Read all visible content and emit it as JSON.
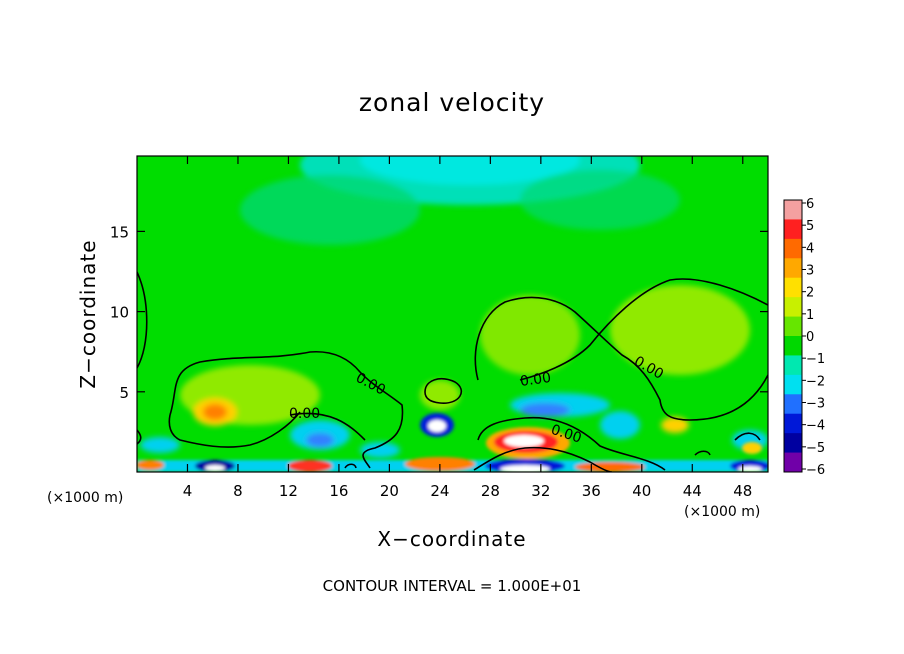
{
  "chart_data": {
    "type": "heatmap",
    "title": "zonal velocity",
    "xlabel": "X−coordinate",
    "ylabel": "Z−coordinate",
    "x_unit_left": "(×1000 m)",
    "x_unit_right": "(×1000 m)",
    "x_ticks": [
      "4",
      "8",
      "12",
      "16",
      "20",
      "24",
      "28",
      "32",
      "36",
      "40",
      "44",
      "48"
    ],
    "y_ticks": [
      "5",
      "10",
      "15"
    ],
    "xlim": [
      0,
      50
    ],
    "ylim": [
      0,
      19.7
    ],
    "contour_label": "0.00",
    "contour_interval_text": "CONTOUR INTERVAL = 1.000E+01",
    "colorbar": {
      "labels": [
        "6",
        "5",
        "4",
        "3",
        "2",
        "1",
        "0",
        "−1",
        "−2",
        "−3",
        "−4",
        "−5",
        "−6"
      ],
      "colors": [
        "#f4a0a0",
        "#ff2020",
        "#ff6a00",
        "#ffa800",
        "#ffe000",
        "#c8f000",
        "#66e600",
        "#00d800",
        "#00e8b0",
        "#00e0f0",
        "#2070ff",
        "#0018d8",
        "#0000a0",
        "#7000a8"
      ]
    },
    "grid": false
  }
}
